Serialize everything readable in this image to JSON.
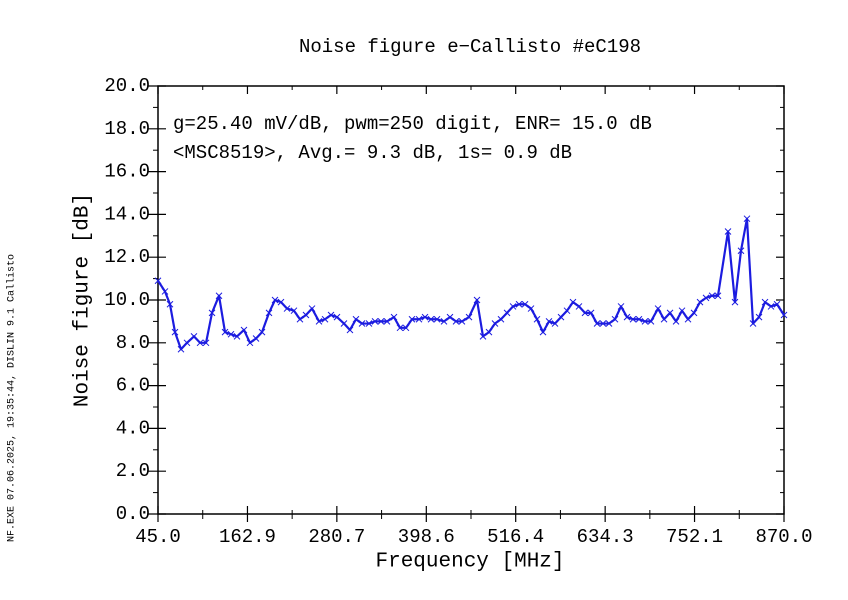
{
  "chart_data": {
    "type": "line",
    "title": "Noise figure e−Callisto #eC198",
    "annotations": [
      "g=25.40 mV/dB, pwm=250 digit, ENR= 15.0 dB",
      "<MSC8519>, Avg.= 9.3 dB, 1s= 0.9 dB"
    ],
    "side_note": "NF.EXE 07.06.2025, 19:35:44, DISLIN 9.1 Callisto",
    "xlabel": "Frequency [MHz]",
    "ylabel": "Noise figure [dB]",
    "xlim": [
      45,
      870
    ],
    "ylim": [
      0,
      20
    ],
    "xticks": [
      {
        "value": 45,
        "label": "45.0"
      },
      162.9,
      280.7,
      398.6,
      516.4,
      634.3,
      752.1,
      {
        "value": 870,
        "label": "870.0"
      }
    ],
    "yticks": [
      {
        "value": 0,
        "label": "0.0"
      },
      {
        "value": 2,
        "label": "2.0"
      },
      {
        "value": 4,
        "label": "4.0"
      },
      {
        "value": 6,
        "label": "6.0"
      },
      {
        "value": 8,
        "label": "8.0"
      },
      {
        "value": 10,
        "label": "10.0"
      },
      {
        "value": 12,
        "label": "12.0"
      },
      {
        "value": 14,
        "label": "14.0"
      },
      {
        "value": 16,
        "label": "16.0"
      },
      {
        "value": 18,
        "label": "18.0"
      },
      {
        "value": 20,
        "label": "20.0"
      }
    ],
    "marker": "x",
    "x": [
      45,
      54.2,
      60.8,
      67.4,
      75.3,
      83.2,
      92.4,
      100.4,
      108.3,
      116.2,
      125.4,
      133.3,
      141.2,
      149.1,
      158.3,
      166.2,
      174.2,
      182.1,
      191.3,
      199.2,
      207.1,
      215.0,
      224.2,
      232.1,
      240.0,
      248.0,
      257.2,
      265.1,
      273.0,
      280.9,
      290.1,
      298.0,
      305.9,
      313.9,
      323.1,
      331.0,
      338.9,
      346.8,
      356.0,
      363.9,
      371.8,
      379.7,
      389.0,
      396.9,
      404.8,
      412.7,
      421.9,
      429.8,
      437.7,
      445.6,
      454.9,
      465.4,
      473.3,
      481.2,
      489.1,
      497.0,
      505.0,
      512.9,
      520.8,
      528.7,
      536.6,
      544.5,
      552.4,
      560.3,
      568.2,
      576.1,
      584.0,
      591.9,
      599.8,
      607.7,
      615.7,
      623.6,
      631.5,
      639.4,
      647.3,
      655.2,
      663.1,
      671.0,
      678.9,
      686.8,
      694.7,
      704.0,
      711.9,
      719.8,
      727.7,
      735.6,
      743.5,
      751.4,
      759.3,
      767.2,
      775.2,
      783.0,
      796.2,
      805.4,
      813.3,
      821.2,
      829.2,
      837.1,
      845.0,
      852.9,
      860.8,
      870.0
    ],
    "series": [
      {
        "color": "#1c1ce0",
        "values": [
          10.9,
          10.4,
          9.8,
          8.5,
          7.7,
          8.0,
          8.3,
          8.0,
          8.0,
          9.4,
          10.2,
          8.5,
          8.4,
          8.3,
          8.6,
          8.0,
          8.2,
          8.5,
          9.4,
          10.0,
          9.9,
          9.6,
          9.5,
          9.1,
          9.3,
          9.6,
          9.0,
          9.1,
          9.3,
          9.2,
          8.9,
          8.6,
          9.1,
          8.9,
          8.9,
          9.0,
          9.0,
          9.0,
          9.2,
          8.7,
          8.7,
          9.1,
          9.1,
          9.2,
          9.1,
          9.1,
          9.0,
          9.2,
          9.0,
          9.0,
          9.2,
          10.0,
          8.3,
          8.5,
          8.9,
          9.1,
          9.4,
          9.7,
          9.8,
          9.8,
          9.6,
          9.1,
          8.5,
          9.0,
          8.9,
          9.2,
          9.5,
          9.9,
          9.7,
          9.4,
          9.4,
          8.9,
          8.9,
          8.9,
          9.1,
          9.7,
          9.2,
          9.1,
          9.1,
          9.0,
          9.0,
          9.6,
          9.1,
          9.4,
          9.0,
          9.5,
          9.1,
          9.4,
          9.9,
          10.1,
          10.2,
          10.2,
          13.2,
          9.9,
          12.3,
          13.8,
          8.9,
          9.2,
          9.9,
          9.7,
          9.8,
          9.3
        ]
      }
    ]
  }
}
